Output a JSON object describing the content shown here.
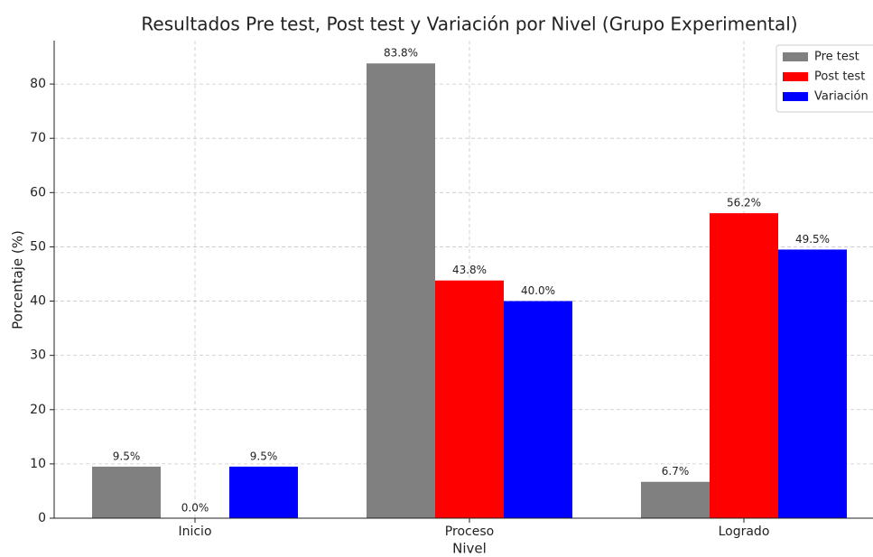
{
  "chart_data": {
    "type": "bar",
    "title": "Resultados Pre test, Post test y Variación por Nivel (Grupo Experimental)",
    "x_label": "Nivel",
    "y_label": "Porcentaje (%)",
    "categories": [
      "Inicio",
      "Proceso",
      "Logrado"
    ],
    "series": [
      {
        "name": "Pre test",
        "color": "#808080",
        "values": [
          9.5,
          83.8,
          6.7
        ],
        "value_labels": [
          "9.5%",
          "83.8%",
          "6.7%"
        ]
      },
      {
        "name": "Post test",
        "color": "#ff0000",
        "values": [
          0.0,
          43.8,
          56.2
        ],
        "value_labels": [
          "0.0%",
          "43.8%",
          "56.2%"
        ]
      },
      {
        "name": "Variación",
        "color": "#0000ff",
        "values": [
          9.5,
          40.0,
          49.5
        ],
        "value_labels": [
          "9.5%",
          "40.0%",
          "49.5%"
        ]
      }
    ],
    "ylim": [
      0,
      88
    ],
    "yticks": [
      0,
      10,
      20,
      30,
      40,
      50,
      60,
      70,
      80
    ],
    "grid": true,
    "legend": "upper right"
  }
}
